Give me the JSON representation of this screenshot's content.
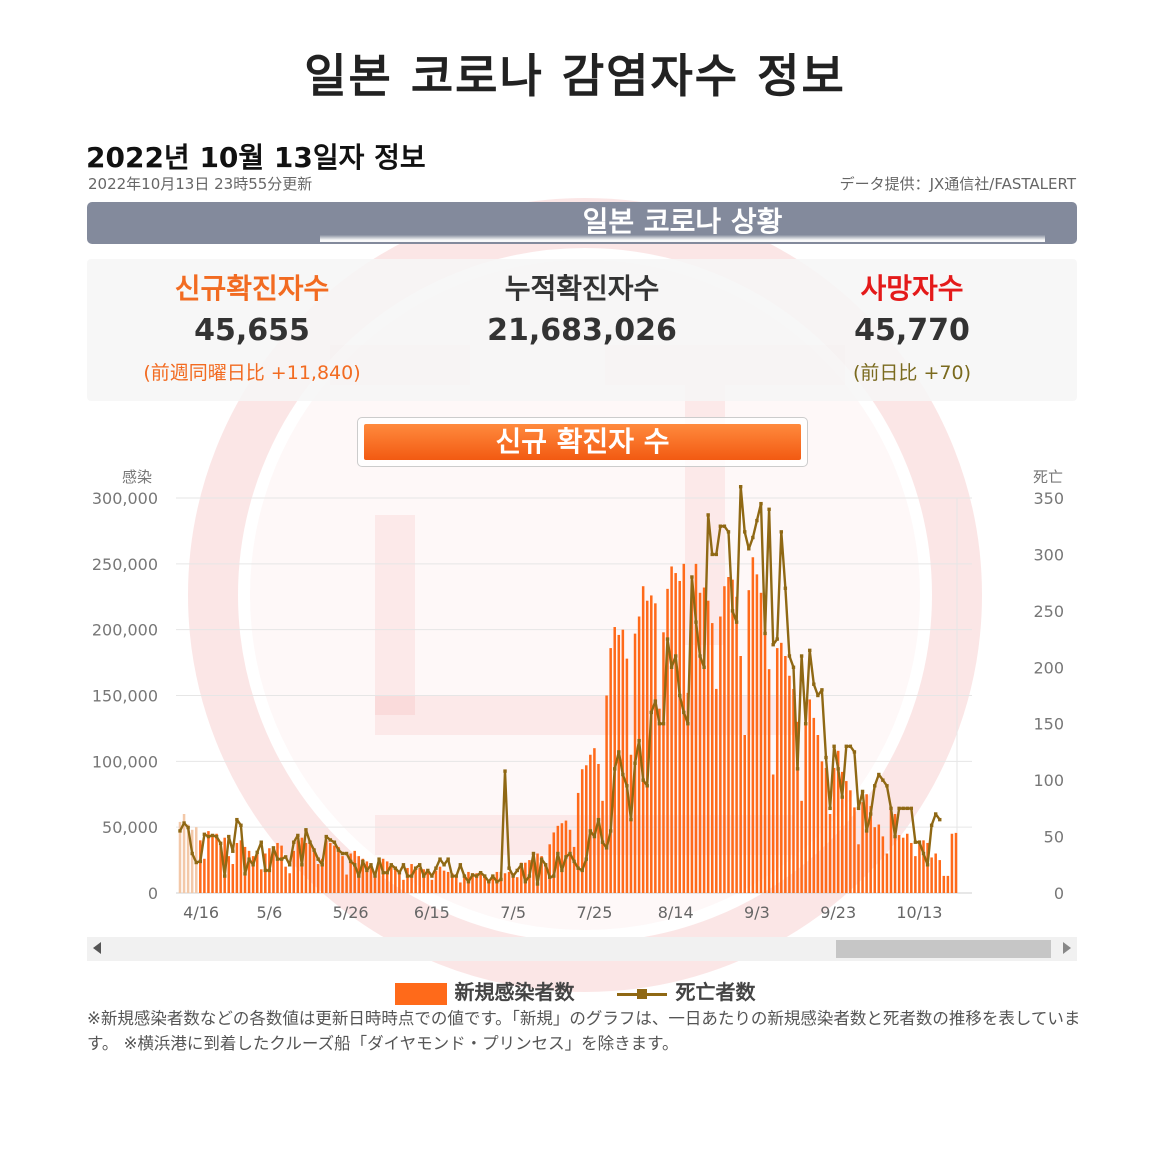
{
  "page": {
    "title": "일본 코로나 감염자수 정보",
    "date_heading": "2022년 10월 13일자 정보",
    "updated": "2022年10月13日 23時55分更新",
    "provider": "データ提供：JX通信社/FASTALERT",
    "section_label": "일본 코로나 상황",
    "chart_label": "신규 확진자 수"
  },
  "stats": {
    "new_cases": {
      "label": "신규확진자수",
      "value": "45,655",
      "change": "(前週同曜日比 +11,840)",
      "color": "#f26b21"
    },
    "total_cases": {
      "label": "누적확진자수",
      "value": "21,683,026",
      "color": "#333333"
    },
    "deaths": {
      "label": "사망자수",
      "value": "45,770",
      "change": "(前日比 +70)",
      "color": "#e41a1a",
      "change_color": "#7a6a1e"
    }
  },
  "colors": {
    "bars": "#ff6a1a",
    "deaths_line": "#8f6814",
    "header_bar": "#838a9c",
    "watermark": "#e03a3a"
  },
  "legend": {
    "cases": "新規感染者数",
    "deaths": "死亡者数"
  },
  "note": "※新規感染者数などの各数値は更新日時時点での値です。「新規」のグラフは、一日あたりの新規感染者数と死者数の推移を表しています。 ※横浜港に到着したクルーズ船「ダイヤモンド・プリンセス」を除きます。",
  "chart_data": {
    "type": "bar+line",
    "y_left_label": "感染",
    "y_right_label": "死亡",
    "ylim_left": [
      0,
      300000
    ],
    "ylim_right": [
      0,
      350
    ],
    "y_left_ticks": [
      "300,000",
      "250,000",
      "200,000",
      "150,000",
      "100,000",
      "50,000",
      "0"
    ],
    "y_right_ticks": [
      "350",
      "300",
      "250",
      "200",
      "150",
      "100",
      "50",
      "0"
    ],
    "x_tick_labels": [
      "4/16",
      "5/6",
      "5/26",
      "6/15",
      "7/5",
      "7/25",
      "8/14",
      "9/3",
      "9/23",
      "10/13"
    ],
    "start_date": "4/14",
    "end_date": "10/13",
    "series": [
      {
        "name": "新規感染者数",
        "type": "bar",
        "values": [
          54000,
          60000,
          52000,
          48000,
          50000,
          40000,
          26000,
          47000,
          44000,
          45000,
          38000,
          42000,
          28000,
          22000,
          38000,
          40000,
          35000,
          32000,
          28000,
          30000,
          18000,
          30000,
          34000,
          32000,
          38000,
          36000,
          20000,
          15000,
          32000,
          40000,
          42000,
          38000,
          40000,
          34000,
          22000,
          26000,
          40000,
          38000,
          36000,
          35000,
          28000,
          14000,
          30000,
          32000,
          28000,
          26000,
          24000,
          20000,
          14000,
          22000,
          26000,
          24000,
          22000,
          20000,
          16000,
          10000,
          19000,
          22000,
          20000,
          19000,
          18000,
          16000,
          10000,
          17000,
          20000,
          17000,
          16000,
          15000,
          12000,
          8000,
          14000,
          16000,
          15000,
          15000,
          14000,
          12000,
          8000,
          14000,
          16000,
          16000,
          15000,
          16000,
          15000,
          12000,
          23000,
          23000,
          25000,
          26000,
          30000,
          28000,
          22000,
          37000,
          46000,
          51000,
          53000,
          55000,
          48000,
          35000,
          76000,
          94000,
          97000,
          105000,
          110000,
          98000,
          70000,
          150000,
          186000,
          202000,
          196000,
          200000,
          178000,
          105000,
          197000,
          210000,
          233000,
          222000,
          226000,
          220000,
          140000,
          198000,
          231000,
          248000,
          243000,
          237000,
          250000,
          152000,
          230000,
          250000,
          228000,
          232000,
          222000,
          205000,
          155000,
          210000,
          233000,
          240000,
          238000,
          225000,
          180000,
          120000,
          230000,
          255000,
          242000,
          228000,
          205000,
          170000,
          90000,
          186000,
          190000,
          180000,
          165000,
          155000,
          130000,
          70000,
          139000,
          147000,
          133000,
          120000,
          100000,
          95000,
          60000,
          95000,
          108000,
          92000,
          85000,
          78000,
          65000,
          37000,
          69000,
          75000,
          66000,
          50000,
          52000,
          43000,
          30000,
          65000,
          60000,
          44000,
          42000,
          45000,
          38000,
          28000,
          40000,
          40000,
          38000,
          27000,
          30000,
          25000,
          13000,
          13000,
          45000,
          45655
        ]
      },
      {
        "name": "死亡者数",
        "type": "line",
        "values": [
          55,
          62,
          58,
          35,
          27,
          28,
          52,
          50,
          51,
          50,
          44,
          15,
          50,
          37,
          65,
          60,
          17,
          30,
          25,
          36,
          45,
          20,
          20,
          40,
          30,
          30,
          32,
          25,
          45,
          51,
          25,
          56,
          45,
          38,
          30,
          25,
          50,
          47,
          45,
          38,
          35,
          35,
          28,
          25,
          15,
          28,
          20,
          25,
          15,
          30,
          18,
          18,
          25,
          22,
          18,
          25,
          15,
          15,
          22,
          25,
          15,
          20,
          15,
          22,
          30,
          25,
          30,
          15,
          15,
          25,
          15,
          10,
          16,
          15,
          18,
          15,
          10,
          15,
          10,
          12,
          108,
          22,
          15,
          20,
          25,
          10,
          15,
          35,
          8,
          30,
          25,
          14,
          15,
          35,
          20,
          32,
          35,
          28,
          22,
          20,
          30,
          55,
          50,
          65,
          45,
          40,
          55,
          110,
          125,
          105,
          95,
          65,
          115,
          135,
          100,
          95,
          160,
          170,
          150,
          150,
          225,
          200,
          210,
          175,
          160,
          150,
          280,
          240,
          210,
          200,
          335,
          300,
          300,
          325,
          325,
          320,
          250,
          240,
          360,
          320,
          305,
          315,
          330,
          345,
          230,
          340,
          220,
          225,
          320,
          270,
          210,
          200,
          110,
          210,
          150,
          215,
          185,
          175,
          180,
          120,
          75,
          130,
          110,
          85,
          130,
          130,
          125,
          75,
          90,
          55,
          70,
          95,
          105,
          100,
          95,
          75,
          50,
          75,
          75,
          75,
          75,
          45,
          45,
          35,
          25,
          60,
          70,
          65
        ]
      }
    ]
  }
}
